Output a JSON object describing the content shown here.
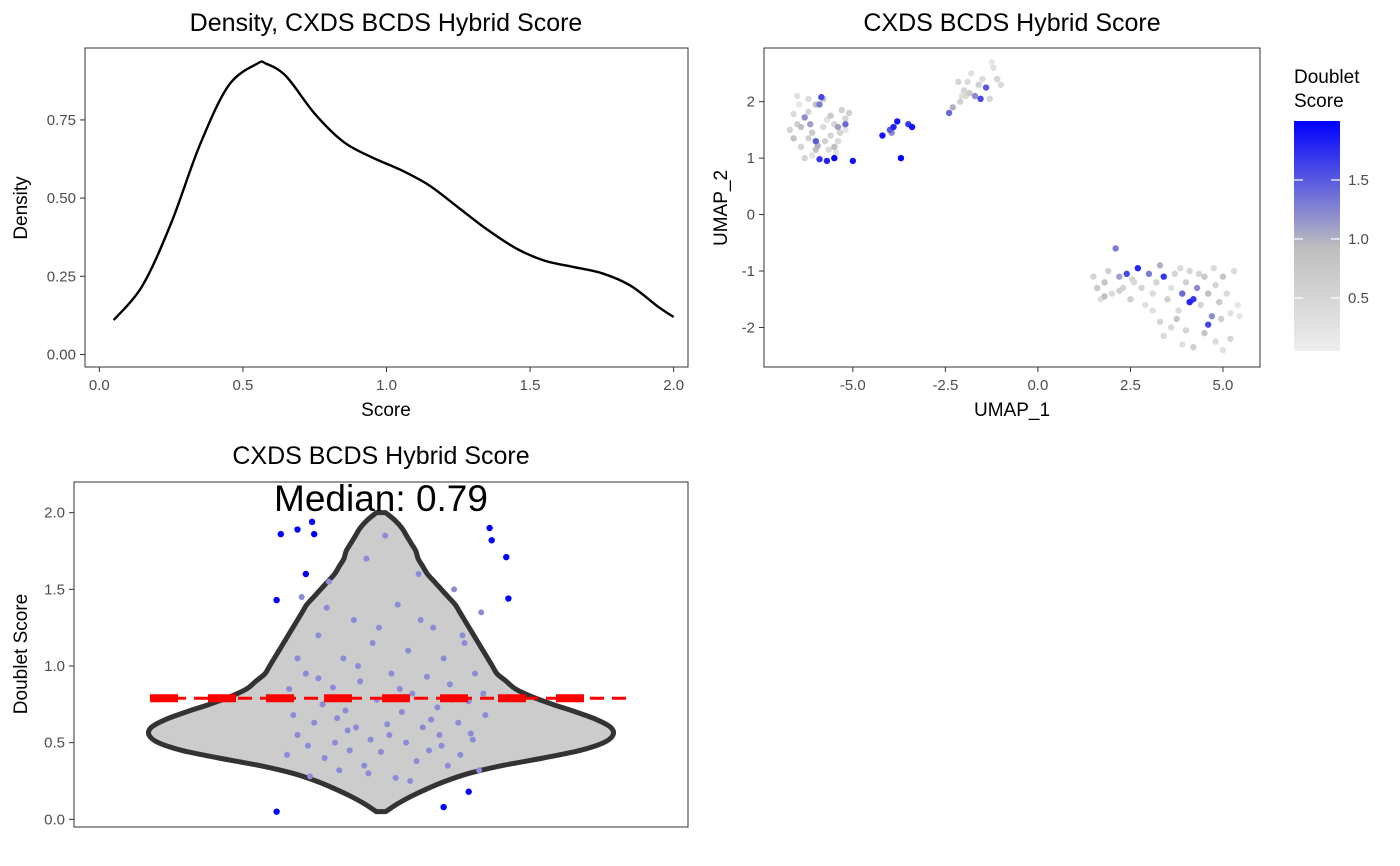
{
  "colors": {
    "density_line": "#000000",
    "violin_fill": "#cccccc",
    "violin_stroke": "#333333",
    "median_line": "#ff0000",
    "violin_points": "#8b8bd8",
    "outlier_points": "#0000ff",
    "gradient_low": "#eeeeee",
    "gradient_mid": "#bebebe",
    "gradient_high": "#0000ff"
  },
  "chart_data": [
    {
      "type": "line",
      "title": "Density, CXDS BCDS Hybrid Score",
      "xlabel": "Score",
      "ylabel": "Density",
      "xlim": [
        -0.05,
        2.05
      ],
      "ylim": [
        -0.04,
        0.98
      ],
      "x_ticks": [
        0,
        0.5,
        1.0,
        1.5,
        2.0
      ],
      "x_tick_labels": [
        "0.0",
        "0.5",
        "1.0",
        "1.5",
        "2.0"
      ],
      "y_ticks": [
        0,
        0.25,
        0.5,
        0.75
      ],
      "y_tick_labels": [
        "0.00",
        "0.25",
        "0.50",
        "0.75"
      ],
      "grid": false,
      "x": [
        0.05,
        0.15,
        0.25,
        0.35,
        0.45,
        0.55,
        0.58,
        0.65,
        0.75,
        0.85,
        0.95,
        1.05,
        1.15,
        1.25,
        1.35,
        1.45,
        1.55,
        1.65,
        1.75,
        1.85,
        1.95,
        2.0
      ],
      "y": [
        0.11,
        0.22,
        0.42,
        0.67,
        0.86,
        0.93,
        0.93,
        0.89,
        0.77,
        0.68,
        0.63,
        0.59,
        0.54,
        0.47,
        0.4,
        0.34,
        0.3,
        0.28,
        0.26,
        0.22,
        0.15,
        0.12
      ]
    },
    {
      "type": "scatter",
      "title": "CXDS BCDS Hybrid Score",
      "xlabel": "UMAP_1",
      "ylabel": "UMAP_2",
      "xlim": [
        -7.4,
        6.0
      ],
      "ylim": [
        -2.7,
        2.95
      ],
      "x_ticks": [
        -5,
        -2.5,
        0,
        2.5,
        5
      ],
      "x_tick_labels": [
        "-5.0",
        "-2.5",
        "0.0",
        "2.5",
        "5.0"
      ],
      "y_ticks": [
        -2,
        -1,
        0,
        1,
        2
      ],
      "y_tick_labels": [
        "-2",
        "-1",
        "0",
        "1",
        "2"
      ],
      "grid": false,
      "legend": {
        "title_lines": [
          "Doublet",
          "Score"
        ],
        "min": 0.05,
        "max": 2.0,
        "ticks": [
          0.5,
          1.0,
          1.5
        ],
        "tick_labels": [
          "0.5",
          "1.0",
          "1.5"
        ],
        "placement": "right"
      },
      "points": [
        [
          -6.6,
          1.78,
          0.4
        ],
        [
          -6.5,
          1.6,
          0.6
        ],
        [
          -6.4,
          1.55,
          0.9
        ],
        [
          -6.3,
          1.72,
          1.2
        ],
        [
          -6.2,
          1.82,
          0.5
        ],
        [
          -6.1,
          1.45,
          0.7
        ],
        [
          -6.0,
          1.3,
          1.5
        ],
        [
          -5.9,
          1.95,
          1.3
        ],
        [
          -5.8,
          2.05,
          0.8
        ],
        [
          -5.7,
          1.68,
          0.3
        ],
        [
          -5.6,
          1.4,
          0.5
        ],
        [
          -5.5,
          1.2,
          0.9
        ],
        [
          -5.4,
          1.55,
          1.1
        ],
        [
          -5.3,
          1.85,
          0.6
        ],
        [
          -5.2,
          1.6,
          1.4
        ],
        [
          -6.4,
          1.2,
          0.5
        ],
        [
          -6.3,
          1.0,
          0.5
        ],
        [
          -6.1,
          1.05,
          0.3
        ],
        [
          -6.0,
          1.15,
          0.9
        ],
        [
          -5.9,
          0.98,
          1.7
        ],
        [
          -5.7,
          0.95,
          1.8
        ],
        [
          -5.5,
          1.0,
          2.0
        ],
        [
          -6.5,
          2.1,
          0.3
        ],
        [
          -6.2,
          2.05,
          0.4
        ],
        [
          -6.0,
          1.95,
          0.9
        ],
        [
          -5.85,
          2.08,
          1.6
        ],
        [
          -5.6,
          1.75,
          0.7
        ],
        [
          -5.4,
          1.3,
          0.4
        ],
        [
          -5.2,
          1.7,
          0.5
        ],
        [
          -5.1,
          1.8,
          0.6
        ],
        [
          -6.7,
          1.5,
          0.5
        ],
        [
          -6.6,
          1.35,
          0.8
        ],
        [
          -6.2,
          1.35,
          0.6
        ],
        [
          -5.8,
          1.55,
          0.4
        ],
        [
          -5.75,
          1.3,
          0.6
        ],
        [
          -5.5,
          1.6,
          0.5
        ],
        [
          -5.45,
          1.1,
          0.3
        ],
        [
          -5.95,
          1.22,
          1.0
        ],
        [
          -6.15,
          1.6,
          1.1
        ],
        [
          -5.65,
          1.15,
          0.4
        ],
        [
          -5.0,
          0.95,
          1.9
        ],
        [
          -5.2,
          1.5,
          0.2
        ],
        [
          -6.45,
          1.95,
          0.2
        ],
        [
          -5.35,
          1.45,
          0.5
        ],
        [
          -4.2,
          1.4,
          1.9
        ],
        [
          -4.0,
          1.5,
          1.5
        ],
        [
          -3.9,
          1.55,
          1.8
        ],
        [
          -3.8,
          1.65,
          1.9
        ],
        [
          -3.7,
          1.0,
          2.0
        ],
        [
          -3.5,
          1.6,
          1.7
        ],
        [
          -3.4,
          1.55,
          1.9
        ],
        [
          -3.95,
          1.45,
          1.2
        ],
        [
          -2.4,
          1.8,
          1.4
        ],
        [
          -2.3,
          1.9,
          1.0
        ],
        [
          -2.1,
          2.0,
          0.6
        ],
        [
          -2.0,
          2.2,
          0.5
        ],
        [
          -1.9,
          2.35,
          0.4
        ],
        [
          -1.8,
          2.5,
          0.3
        ],
        [
          -1.7,
          2.1,
          1.2
        ],
        [
          -1.6,
          2.3,
          0.6
        ],
        [
          -1.5,
          2.4,
          0.4
        ],
        [
          -1.4,
          2.25,
          1.5
        ],
        [
          -1.3,
          2.05,
          0.5
        ],
        [
          -1.2,
          2.6,
          0.3
        ],
        [
          -1.1,
          2.4,
          0.5
        ],
        [
          -1.0,
          2.3,
          0.4
        ],
        [
          -1.25,
          2.7,
          0.2
        ],
        [
          -2.15,
          2.35,
          0.5
        ],
        [
          -1.55,
          2.05,
          1.6
        ],
        [
          -1.85,
          2.15,
          0.7
        ],
        [
          -1.95,
          2.1,
          0.4
        ],
        [
          -2.05,
          2.1,
          0.3
        ],
        [
          1.5,
          -1.1,
          0.5
        ],
        [
          1.6,
          -1.3,
          0.7
        ],
        [
          1.7,
          -1.5,
          0.3
        ],
        [
          1.8,
          -1.2,
          0.8
        ],
        [
          1.9,
          -1.0,
          0.6
        ],
        [
          2.0,
          -1.4,
          0.4
        ],
        [
          2.1,
          -0.6,
          1.3
        ],
        [
          2.2,
          -1.1,
          1.1
        ],
        [
          2.3,
          -1.3,
          0.5
        ],
        [
          2.4,
          -1.05,
          1.6
        ],
        [
          2.5,
          -1.5,
          0.6
        ],
        [
          2.6,
          -1.2,
          0.4
        ],
        [
          2.7,
          -0.95,
          1.8
        ],
        [
          2.8,
          -1.3,
          0.5
        ],
        [
          2.9,
          -1.6,
          0.3
        ],
        [
          3.0,
          -1.05,
          1.3
        ],
        [
          3.1,
          -1.4,
          0.4
        ],
        [
          3.2,
          -1.2,
          0.5
        ],
        [
          3.3,
          -0.9,
          1.0
        ],
        [
          3.4,
          -1.1,
          1.7
        ],
        [
          3.5,
          -1.5,
          0.6
        ],
        [
          3.6,
          -1.3,
          0.3
        ],
        [
          3.7,
          -1.05,
          0.5
        ],
        [
          3.8,
          -1.7,
          0.4
        ],
        [
          3.9,
          -1.4,
          1.4
        ],
        [
          4.0,
          -1.2,
          0.6
        ],
        [
          4.1,
          -1.0,
          0.5
        ],
        [
          4.2,
          -1.5,
          1.7
        ],
        [
          4.3,
          -1.3,
          1.2
        ],
        [
          4.4,
          -1.6,
          0.5
        ],
        [
          4.5,
          -1.1,
          0.7
        ],
        [
          4.6,
          -1.4,
          0.9
        ],
        [
          4.7,
          -1.8,
          1.2
        ],
        [
          4.8,
          -1.25,
          0.5
        ],
        [
          4.9,
          -1.55,
          0.7
        ],
        [
          5.0,
          -1.1,
          0.8
        ],
        [
          5.1,
          -1.4,
          0.4
        ],
        [
          5.2,
          -1.75,
          0.3
        ],
        [
          5.3,
          -1.0,
          0.4
        ],
        [
          5.4,
          -1.6,
          0.2
        ],
        [
          3.3,
          -1.9,
          0.5
        ],
        [
          3.6,
          -2.0,
          0.4
        ],
        [
          3.9,
          -2.3,
          0.3
        ],
        [
          4.2,
          -2.35,
          0.6
        ],
        [
          4.5,
          -2.1,
          0.8
        ],
        [
          4.8,
          -2.25,
          0.4
        ],
        [
          5.0,
          -2.4,
          0.3
        ],
        [
          5.2,
          -2.2,
          0.5
        ],
        [
          3.4,
          -2.15,
          0.4
        ],
        [
          4.0,
          -2.05,
          0.5
        ],
        [
          4.6,
          -1.95,
          1.6
        ],
        [
          3.1,
          -1.7,
          0.3
        ],
        [
          2.2,
          -1.35,
          0.6
        ],
        [
          1.8,
          -1.45,
          0.9
        ],
        [
          4.1,
          -1.55,
          1.8
        ],
        [
          4.35,
          -1.05,
          0.5
        ],
        [
          5.45,
          -1.8,
          0.2
        ],
        [
          3.85,
          -0.95,
          0.4
        ],
        [
          2.55,
          -1.15,
          0.5
        ],
        [
          4.75,
          -0.95,
          0.4
        ],
        [
          4.95,
          -1.85,
          0.6
        ],
        [
          3.75,
          -1.85,
          0.8
        ]
      ]
    },
    {
      "type": "violin",
      "title": "CXDS BCDS Hybrid Score",
      "xlabel": "",
      "ylabel": "Doublet Score",
      "ylim": [
        -0.05,
        2.2
      ],
      "y_ticks": [
        0,
        0.5,
        1.0,
        1.5,
        2.0
      ],
      "y_tick_labels": [
        "0.0",
        "0.5",
        "1.0",
        "1.5",
        "2.0"
      ],
      "grid": false,
      "annotation": "Median: 0.79",
      "median": 0.79,
      "profile": [
        [
          0.05,
          0.02
        ],
        [
          0.1,
          0.07
        ],
        [
          0.15,
          0.13
        ],
        [
          0.2,
          0.2
        ],
        [
          0.25,
          0.28
        ],
        [
          0.3,
          0.38
        ],
        [
          0.35,
          0.52
        ],
        [
          0.4,
          0.7
        ],
        [
          0.45,
          0.86
        ],
        [
          0.5,
          0.96
        ],
        [
          0.55,
          1.0
        ],
        [
          0.6,
          0.99
        ],
        [
          0.65,
          0.93
        ],
        [
          0.7,
          0.84
        ],
        [
          0.75,
          0.74
        ],
        [
          0.8,
          0.65
        ],
        [
          0.85,
          0.58
        ],
        [
          0.9,
          0.54
        ],
        [
          0.95,
          0.5
        ],
        [
          1.0,
          0.48
        ],
        [
          1.05,
          0.46
        ],
        [
          1.1,
          0.44
        ],
        [
          1.15,
          0.42
        ],
        [
          1.2,
          0.4
        ],
        [
          1.25,
          0.38
        ],
        [
          1.3,
          0.36
        ],
        [
          1.35,
          0.34
        ],
        [
          1.4,
          0.32
        ],
        [
          1.45,
          0.29
        ],
        [
          1.5,
          0.26
        ],
        [
          1.55,
          0.23
        ],
        [
          1.6,
          0.2
        ],
        [
          1.65,
          0.18
        ],
        [
          1.7,
          0.16
        ],
        [
          1.75,
          0.15
        ],
        [
          1.8,
          0.13
        ],
        [
          1.85,
          0.11
        ],
        [
          1.9,
          0.09
        ],
        [
          1.95,
          0.06
        ],
        [
          2.0,
          0.02
        ]
      ],
      "inner_points": [
        [
          -0.45,
          0.42
        ],
        [
          -0.42,
          0.68
        ],
        [
          -0.4,
          0.55
        ],
        [
          -0.38,
          1.45
        ],
        [
          -0.36,
          0.95
        ],
        [
          -0.34,
          0.28
        ],
        [
          -0.32,
          0.63
        ],
        [
          -0.3,
          1.2
        ],
        [
          -0.28,
          0.75
        ],
        [
          -0.27,
          0.4
        ],
        [
          -0.25,
          1.55
        ],
        [
          -0.23,
          0.86
        ],
        [
          -0.22,
          0.5
        ],
        [
          -0.2,
          0.32
        ],
        [
          -0.18,
          1.05
        ],
        [
          -0.17,
          0.71
        ],
        [
          -0.15,
          0.45
        ],
        [
          -0.13,
          1.3
        ],
        [
          -0.12,
          0.6
        ],
        [
          -0.1,
          0.9
        ],
        [
          -0.08,
          0.35
        ],
        [
          -0.07,
          1.7
        ],
        [
          -0.05,
          0.52
        ],
        [
          -0.04,
          1.15
        ],
        [
          -0.02,
          0.78
        ],
        [
          0.0,
          0.44
        ],
        [
          0.02,
          1.85
        ],
        [
          0.03,
          0.62
        ],
        [
          0.05,
          0.95
        ],
        [
          0.07,
          0.27
        ],
        [
          0.08,
          1.4
        ],
        [
          0.1,
          0.7
        ],
        [
          0.12,
          0.5
        ],
        [
          0.13,
          1.1
        ],
        [
          0.15,
          0.82
        ],
        [
          0.17,
          0.38
        ],
        [
          0.18,
          1.6
        ],
        [
          0.2,
          0.6
        ],
        [
          0.22,
          0.93
        ],
        [
          0.23,
          0.45
        ],
        [
          0.25,
          1.25
        ],
        [
          0.27,
          0.73
        ],
        [
          0.28,
          0.55
        ],
        [
          0.3,
          1.05
        ],
        [
          0.32,
          0.35
        ],
        [
          0.33,
          0.88
        ],
        [
          0.35,
          1.5
        ],
        [
          0.37,
          0.63
        ],
        [
          0.38,
          0.42
        ],
        [
          0.4,
          1.15
        ],
        [
          0.42,
          0.77
        ],
        [
          0.43,
          0.56
        ],
        [
          0.45,
          0.95
        ],
        [
          0.47,
          0.32
        ],
        [
          0.48,
          1.35
        ],
        [
          0.5,
          0.68
        ],
        [
          -0.44,
          0.85
        ],
        [
          -0.4,
          1.05
        ],
        [
          -0.35,
          0.48
        ],
        [
          -0.3,
          0.92
        ],
        [
          -0.26,
          1.38
        ],
        [
          -0.21,
          0.66
        ],
        [
          -0.16,
          0.58
        ],
        [
          -0.11,
          1.0
        ],
        [
          -0.06,
          0.3
        ],
        [
          -0.01,
          1.25
        ],
        [
          0.04,
          0.55
        ],
        [
          0.09,
          0.85
        ],
        [
          0.14,
          0.25
        ],
        [
          0.19,
          1.3
        ],
        [
          0.24,
          0.65
        ],
        [
          0.29,
          0.48
        ],
        [
          0.34,
          0.78
        ],
        [
          0.39,
          1.2
        ],
        [
          0.44,
          0.52
        ],
        [
          0.49,
          0.82
        ]
      ],
      "outlier_points": [
        [
          -0.48,
          1.86
        ],
        [
          -0.4,
          1.89
        ],
        [
          -0.33,
          1.94
        ],
        [
          -0.32,
          1.86
        ],
        [
          -0.36,
          1.6
        ],
        [
          -0.5,
          1.43
        ],
        [
          0.52,
          1.9
        ],
        [
          0.53,
          1.82
        ],
        [
          0.6,
          1.71
        ],
        [
          0.61,
          1.44
        ],
        [
          -0.5,
          0.05
        ],
        [
          0.3,
          0.08
        ],
        [
          0.42,
          0.18
        ]
      ]
    }
  ]
}
